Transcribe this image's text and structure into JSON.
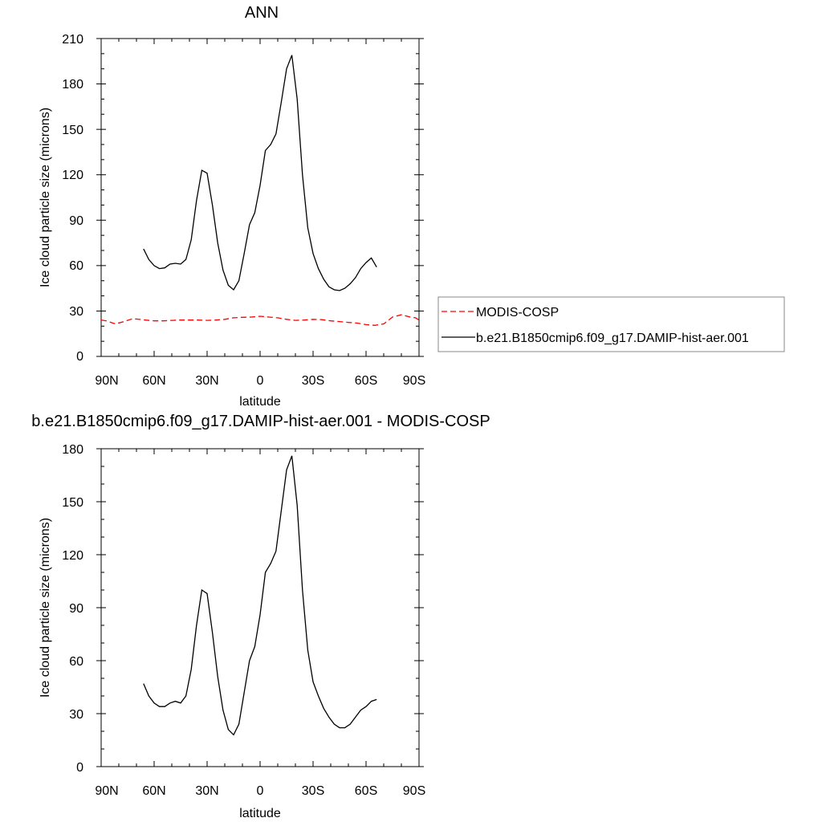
{
  "chart_data": [
    {
      "type": "line",
      "title": "ANN",
      "xlabel": "latitude",
      "ylabel": "Ice cloud particle size (microns)",
      "xlim": [
        90,
        -90
      ],
      "ylim": [
        0,
        210
      ],
      "xticks": [
        90,
        60,
        30,
        0,
        -30,
        -60,
        -90
      ],
      "xtick_labels": [
        "90N",
        "60N",
        "30N",
        "0",
        "30S",
        "60S",
        "90S"
      ],
      "yticks": [
        0,
        30,
        60,
        90,
        120,
        150,
        180,
        210
      ],
      "ytick_labels": [
        "0",
        "30",
        "60",
        "90",
        "120",
        "150",
        "180",
        "210"
      ],
      "grid": false,
      "legend": "right",
      "series": [
        {
          "name": "MODIS-COSP",
          "color": "#ff0000",
          "style": "dashed",
          "x": [
            90,
            87,
            82,
            77,
            72,
            65,
            60,
            55,
            50,
            45,
            40,
            35,
            30,
            25,
            20,
            15,
            10,
            5,
            0,
            -5,
            -10,
            -15,
            -20,
            -25,
            -30,
            -35,
            -40,
            -45,
            -50,
            -55,
            -60,
            -65,
            -70,
            -75,
            -80,
            -85,
            -88,
            -90
          ],
          "y": [
            24,
            23.5,
            21.5,
            23,
            25,
            24,
            23.5,
            23.5,
            23.8,
            24,
            24,
            24,
            23.8,
            24,
            24.5,
            25.5,
            25.8,
            26,
            26.5,
            26,
            25.5,
            24.5,
            23.8,
            24,
            24.5,
            24.3,
            23.5,
            23,
            22.5,
            22,
            21,
            20.5,
            21.5,
            26,
            27.5,
            26,
            25.5,
            24
          ]
        },
        {
          "name": "b.e21.B1850cmip6.f09_g17.DAMIP-hist-aer.001",
          "color": "#000000",
          "style": "solid",
          "x": [
            66,
            63,
            60,
            57,
            54,
            51,
            48,
            45,
            42,
            39,
            36,
            33,
            30,
            27,
            24,
            21,
            18,
            15,
            12,
            9,
            6,
            3,
            0,
            -3,
            -6,
            -9,
            -12,
            -15,
            -18,
            -21,
            -24,
            -27,
            -30,
            -33,
            -36,
            -39,
            -42,
            -45,
            -48,
            -51,
            -54,
            -57,
            -60,
            -63,
            -66
          ],
          "y": [
            71,
            64,
            60,
            58,
            58.5,
            61,
            61.5,
            61,
            64,
            77,
            103,
            123,
            121,
            100,
            75,
            57,
            47,
            44,
            50,
            68,
            87,
            95,
            113,
            136,
            140,
            147,
            168,
            190,
            199,
            170,
            120,
            85,
            68,
            58,
            51,
            46,
            44,
            43.5,
            45,
            48,
            52,
            58,
            62,
            65,
            59
          ]
        }
      ]
    },
    {
      "type": "line",
      "title": "b.e21.B1850cmip6.f09_g17.DAMIP-hist-aer.001 - MODIS-COSP",
      "xlabel": "latitude",
      "ylabel": "Ice cloud particle size (microns)",
      "xlim": [
        90,
        -90
      ],
      "ylim": [
        0,
        180
      ],
      "xticks": [
        90,
        60,
        30,
        0,
        -30,
        -60,
        -90
      ],
      "xtick_labels": [
        "90N",
        "60N",
        "30N",
        "0",
        "30S",
        "60S",
        "90S"
      ],
      "yticks": [
        0,
        30,
        60,
        90,
        120,
        150,
        180
      ],
      "ytick_labels": [
        "0",
        "30",
        "60",
        "90",
        "120",
        "150",
        "180"
      ],
      "grid": false,
      "series": [
        {
          "color": "#000000",
          "style": "solid",
          "x": [
            66,
            63,
            60,
            57,
            54,
            51,
            48,
            45,
            42,
            39,
            36,
            33,
            30,
            27,
            24,
            21,
            18,
            15,
            12,
            9,
            6,
            3,
            0,
            -3,
            -6,
            -9,
            -12,
            -15,
            -18,
            -21,
            -24,
            -27,
            -30,
            -33,
            -36,
            -39,
            -42,
            -45,
            -48,
            -51,
            -54,
            -57,
            -60,
            -63,
            -66
          ],
          "y": [
            47,
            40,
            36,
            34,
            34,
            36,
            37,
            36,
            40,
            55,
            80,
            100,
            98,
            76,
            51,
            32,
            21,
            18,
            24,
            42,
            60,
            68,
            86,
            110,
            115,
            122,
            145,
            168,
            176,
            148,
            100,
            66,
            48,
            40,
            33,
            28,
            24,
            22,
            22,
            24,
            28,
            32,
            34,
            37,
            38
          ]
        }
      ]
    }
  ]
}
